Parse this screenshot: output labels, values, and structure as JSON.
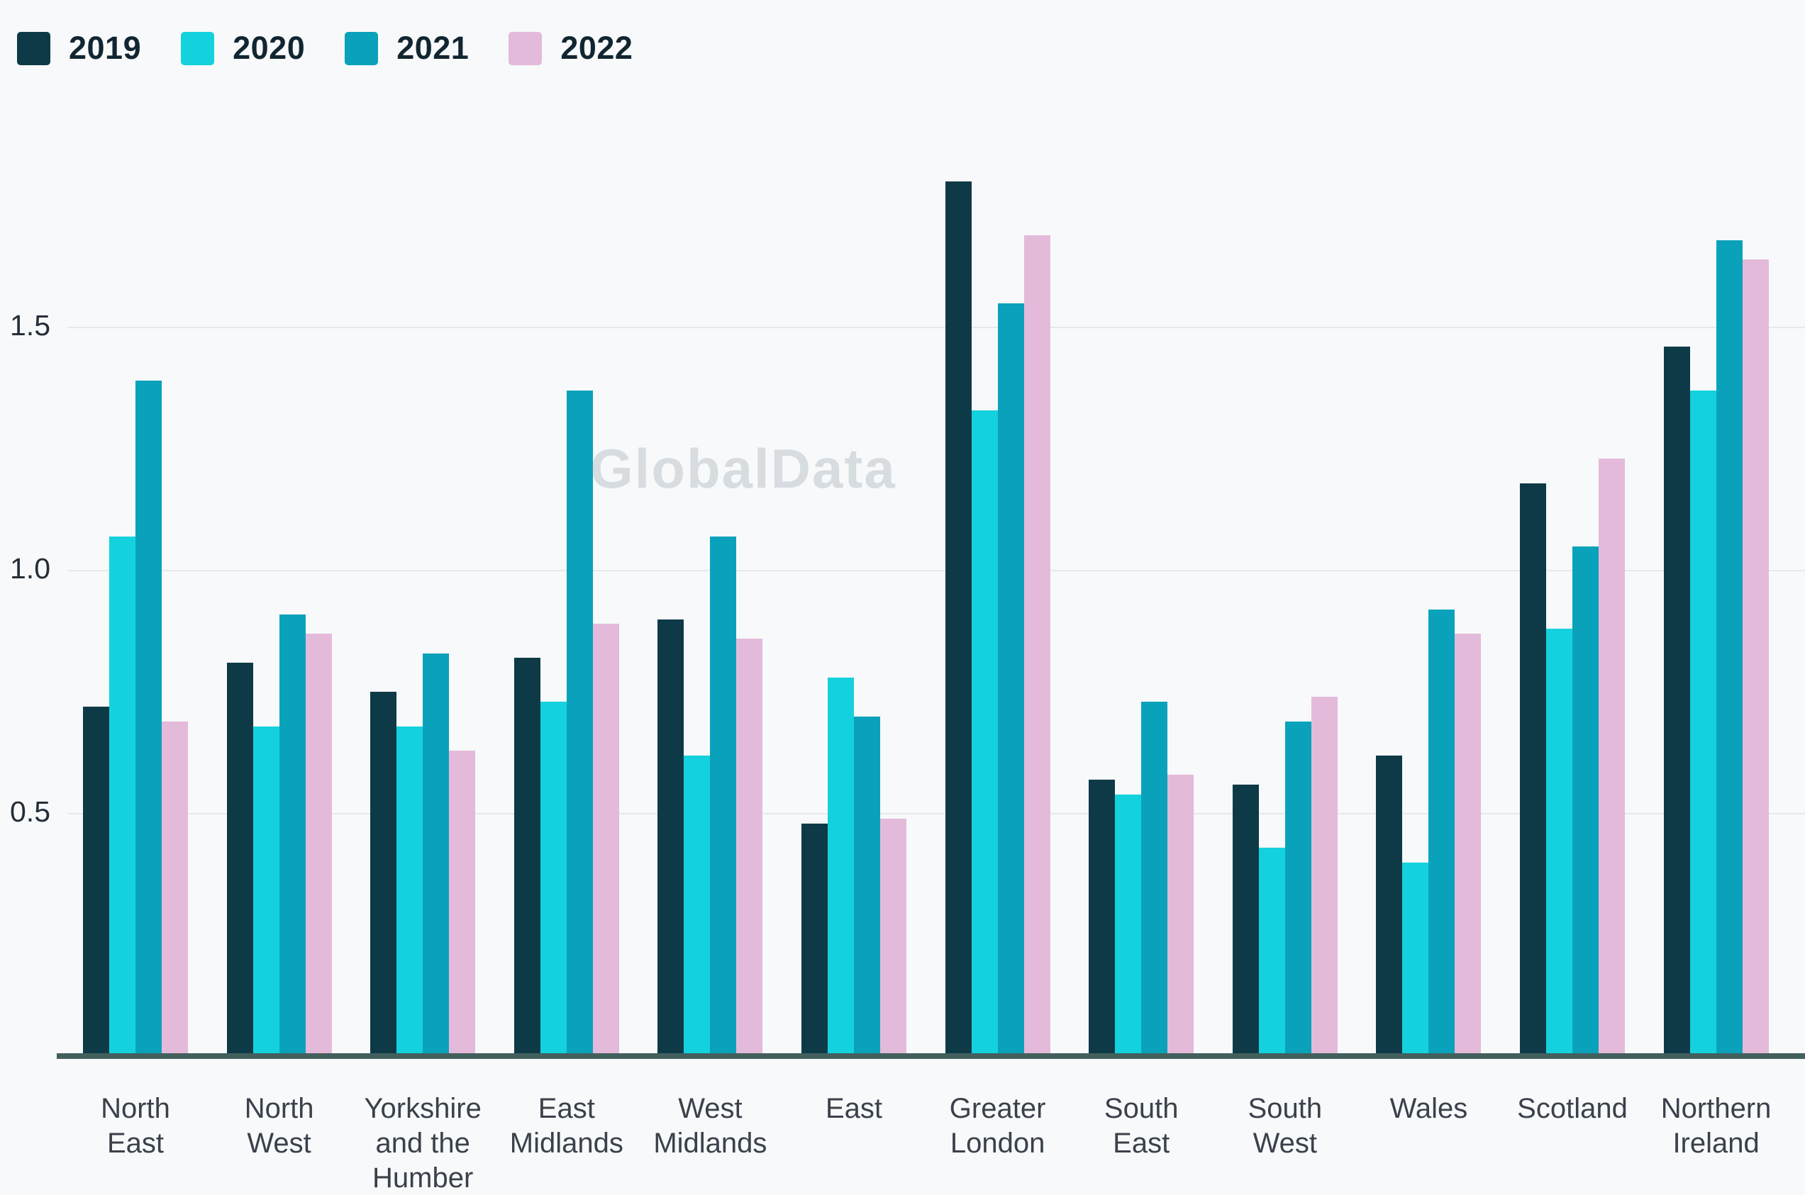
{
  "page": {
    "background": "#f7f9fa",
    "gridline_color": "#e6e8ea",
    "axis_line_color": "#42605d",
    "tick_label_color": "#242e38",
    "category_label_color": "#3a414b"
  },
  "watermark": {
    "text": "GlobalData"
  },
  "chart_data": {
    "type": "bar",
    "title": "",
    "xlabel": "",
    "ylabel": "",
    "categories": [
      "North East",
      "North West",
      "Yorkshire and the Humber",
      "East Midlands",
      "West Midlands",
      "East",
      "Greater London",
      "South East",
      "South West",
      "Wales",
      "Scotland",
      "Northern Ireland"
    ],
    "series": [
      {
        "name": "2019",
        "color": "#0e3a47",
        "values": [
          0.72,
          0.81,
          0.75,
          0.82,
          0.9,
          0.48,
          1.8,
          0.57,
          0.56,
          0.62,
          1.18,
          1.46
        ]
      },
      {
        "name": "2020",
        "color": "#14d2dd",
        "values": [
          1.07,
          0.68,
          0.68,
          0.73,
          0.62,
          0.78,
          1.33,
          0.54,
          0.43,
          0.4,
          0.88,
          1.37
        ]
      },
      {
        "name": "2021",
        "color": "#0aa2ba",
        "values": [
          1.39,
          0.91,
          0.83,
          1.37,
          1.07,
          0.7,
          1.55,
          0.73,
          0.69,
          0.92,
          1.05,
          1.68
        ]
      },
      {
        "name": "2022",
        "color": "#e4bada",
        "values": [
          0.69,
          0.87,
          0.63,
          0.89,
          0.86,
          0.49,
          1.69,
          0.58,
          0.74,
          0.87,
          1.23,
          1.64
        ]
      }
    ],
    "yticks": [
      0.5,
      1.0,
      1.5
    ],
    "ytick_labels": [
      "0.5",
      "1.0",
      "1.5"
    ],
    "ylim": [
      0,
      1.9
    ],
    "grid": true,
    "legend_position": "top-left"
  }
}
